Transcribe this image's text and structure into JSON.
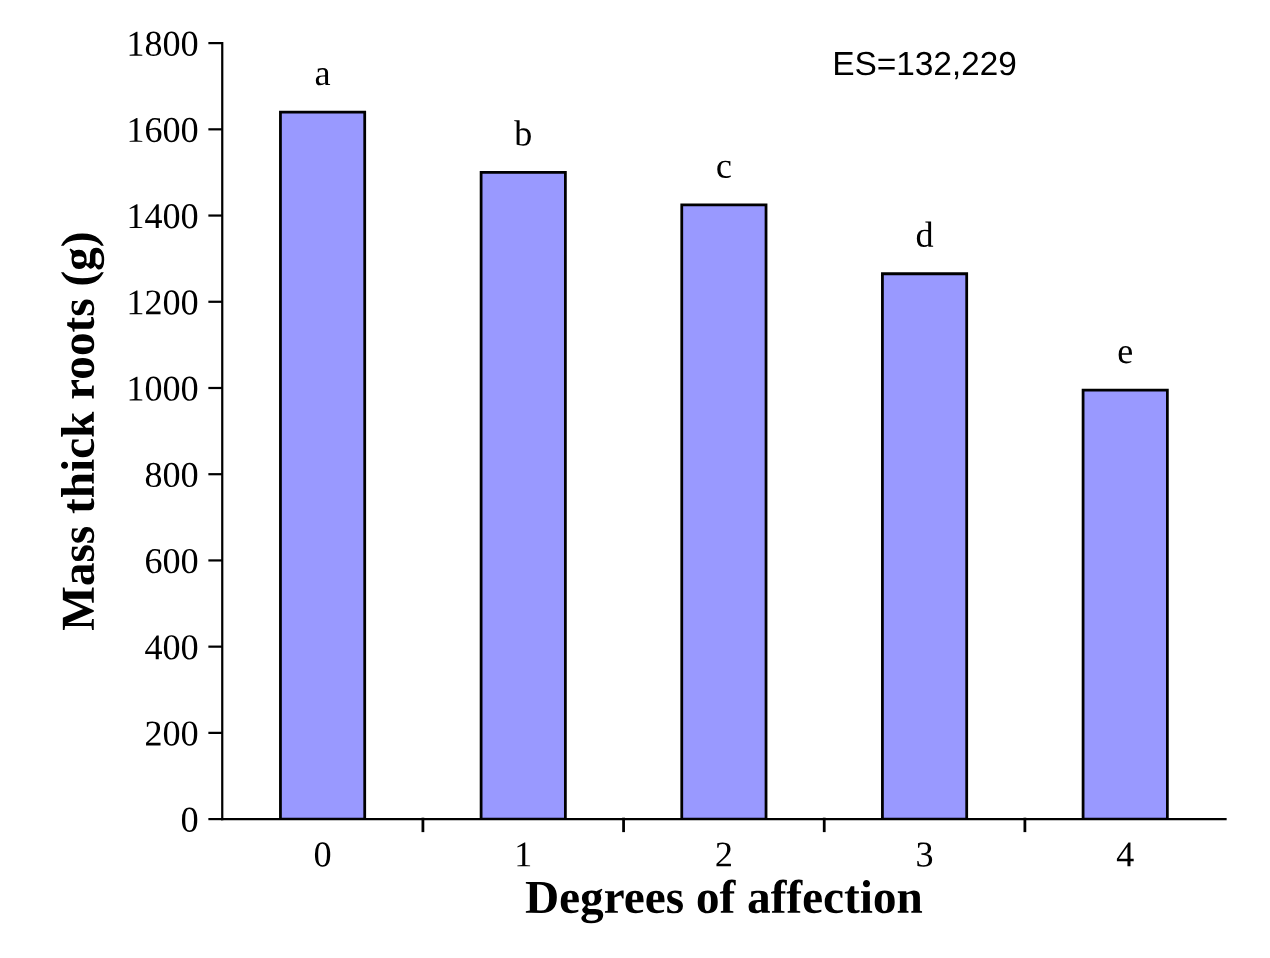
{
  "chart_data": {
    "type": "bar",
    "xlabel": "Degrees of affection",
    "ylabel": "Mass thick roots (g)",
    "categories": [
      "0",
      "1",
      "2",
      "3",
      "4"
    ],
    "values": [
      1640,
      1500,
      1425,
      1265,
      995
    ],
    "color": "#9999ff",
    "ylim": [
      0,
      1800
    ],
    "yticks": [
      0,
      200,
      400,
      600,
      800,
      1000,
      1200,
      1400,
      1600,
      1800
    ],
    "grid": false,
    "legend": false,
    "annotations": [
      {
        "text": "a",
        "x": "0",
        "y": 1640
      },
      {
        "text": "b",
        "x": "1",
        "y": 1500
      },
      {
        "text": "c",
        "x": "2",
        "y": 1425
      },
      {
        "text": "d",
        "x": "3",
        "y": 1265
      },
      {
        "text": "e",
        "x": "4",
        "y": 995
      },
      "ES=132,229"
    ]
  }
}
